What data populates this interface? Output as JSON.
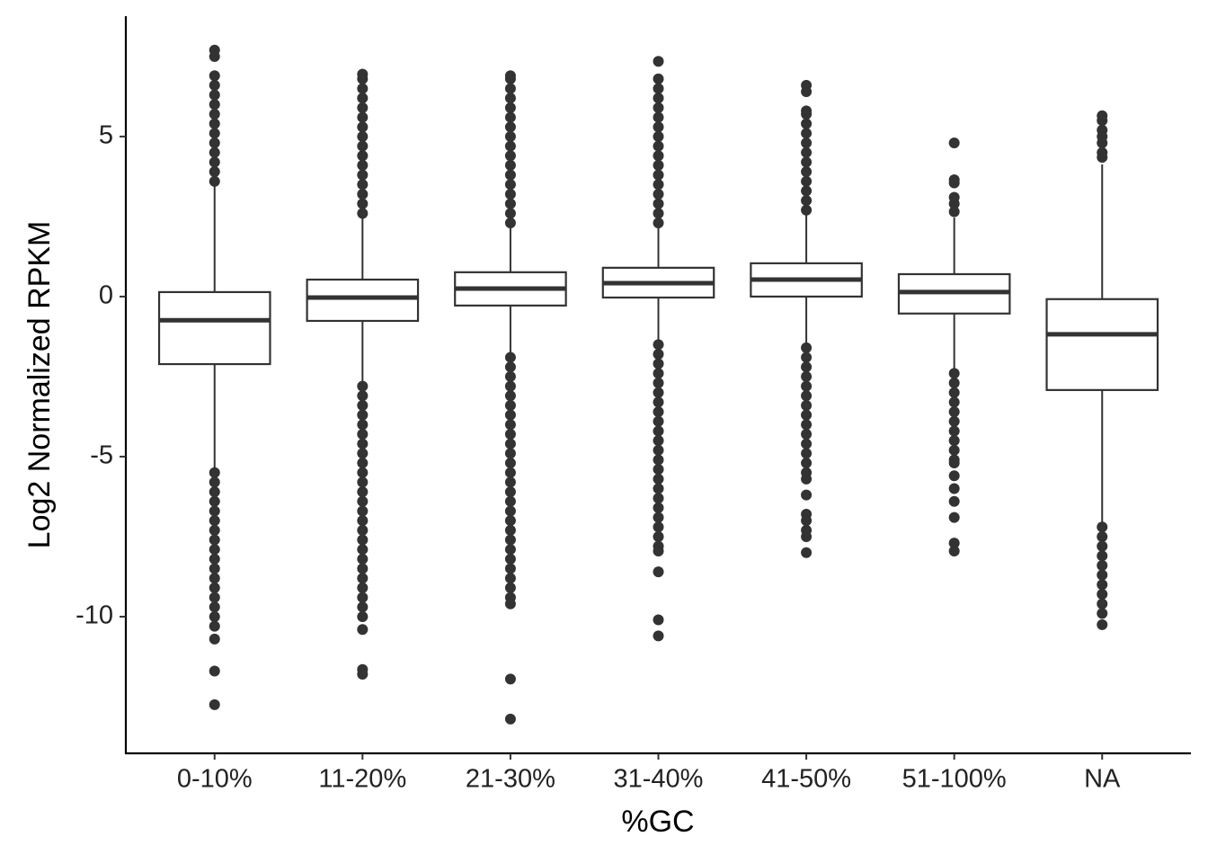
{
  "chart_data": {
    "type": "boxplot",
    "xlabel": "%GC",
    "ylabel": "Log2 Normalized RPKM",
    "categories": [
      "0-10%",
      "11-20%",
      "21-30%",
      "31-40%",
      "41-50%",
      "51-100%",
      "NA"
    ],
    "ylim": [
      -14.27,
      8.76
    ],
    "yticks": [
      -10,
      -5,
      0,
      5
    ],
    "color": "#333333",
    "fill": "#ffffff",
    "boxes": [
      {
        "q1": -2.11,
        "median": -0.74,
        "q3": 0.14,
        "whisker_low": -5.4,
        "whisker_high": 3.5,
        "outliers": [
          3.6,
          3.9,
          4.2,
          4.5,
          4.8,
          5.1,
          5.4,
          5.7,
          6.0,
          6.3,
          6.6,
          6.9,
          7.5,
          7.7,
          -5.5,
          -5.8,
          -6.1,
          -6.4,
          -6.7,
          -7.0,
          -7.3,
          -7.6,
          -7.9,
          -8.2,
          -8.5,
          -8.8,
          -9.1,
          -9.4,
          -9.7,
          -10.0,
          -10.3,
          -10.7,
          -11.7,
          -12.75
        ]
      },
      {
        "q1": -0.76,
        "median": -0.03,
        "q3": 0.53,
        "whisker_low": -2.75,
        "whisker_high": 2.5,
        "outliers": [
          2.6,
          2.9,
          3.2,
          3.5,
          3.8,
          4.1,
          4.4,
          4.7,
          5.0,
          5.3,
          5.6,
          5.9,
          6.2,
          6.5,
          6.8,
          6.95,
          -2.8,
          -3.1,
          -3.4,
          -3.7,
          -4.0,
          -4.3,
          -4.6,
          -4.9,
          -5.2,
          -5.5,
          -5.8,
          -6.1,
          -6.4,
          -6.7,
          -7.0,
          -7.3,
          -7.6,
          -7.9,
          -8.2,
          -8.5,
          -8.8,
          -9.1,
          -9.4,
          -9.7,
          -10.0,
          -10.4,
          -11.65,
          -11.8
        ]
      },
      {
        "q1": -0.28,
        "median": 0.25,
        "q3": 0.76,
        "whisker_low": -1.83,
        "whisker_high": 2.25,
        "outliers": [
          2.3,
          2.6,
          2.9,
          3.2,
          3.5,
          3.8,
          4.1,
          4.4,
          4.7,
          5.0,
          5.3,
          5.6,
          5.9,
          6.2,
          6.5,
          6.8,
          6.9,
          -1.9,
          -2.2,
          -2.5,
          -2.8,
          -3.1,
          -3.4,
          -3.7,
          -4.0,
          -4.3,
          -4.6,
          -4.9,
          -5.2,
          -5.5,
          -5.8,
          -6.1,
          -6.4,
          -6.7,
          -7.0,
          -7.3,
          -7.6,
          -7.9,
          -8.2,
          -8.5,
          -8.8,
          -9.1,
          -9.4,
          -9.6,
          -11.95,
          -13.2
        ]
      },
      {
        "q1": -0.03,
        "median": 0.42,
        "q3": 0.9,
        "whisker_low": -1.4,
        "whisker_high": 2.25,
        "outliers": [
          2.3,
          2.6,
          2.9,
          3.2,
          3.5,
          3.8,
          4.1,
          4.4,
          4.7,
          5.0,
          5.3,
          5.6,
          5.9,
          6.2,
          6.5,
          6.8,
          7.35,
          -1.5,
          -1.8,
          -2.1,
          -2.4,
          -2.7,
          -3.0,
          -3.3,
          -3.6,
          -3.9,
          -4.2,
          -4.5,
          -4.8,
          -5.1,
          -5.4,
          -5.7,
          -6.0,
          -6.3,
          -6.6,
          -6.9,
          -7.2,
          -7.5,
          -7.8,
          -7.95,
          -8.6,
          -10.1,
          -10.6
        ]
      },
      {
        "q1": 0.0,
        "median": 0.53,
        "q3": 1.04,
        "whisker_low": -1.55,
        "whisker_high": 2.6,
        "outliers": [
          2.7,
          3.0,
          3.3,
          3.6,
          3.9,
          4.2,
          4.5,
          4.8,
          5.1,
          5.4,
          5.7,
          5.8,
          6.4,
          6.6,
          -1.6,
          -1.9,
          -2.2,
          -2.5,
          -2.8,
          -3.1,
          -3.4,
          -3.7,
          -4.0,
          -4.3,
          -4.6,
          -4.9,
          -5.2,
          -5.5,
          -5.7,
          -6.2,
          -6.8,
          -7.0,
          -7.3,
          -7.5,
          -8.0
        ]
      },
      {
        "q1": -0.53,
        "median": 0.14,
        "q3": 0.7,
        "whisker_low": -2.25,
        "whisker_high": 2.47,
        "outliers": [
          2.65,
          2.9,
          3.1,
          3.55,
          3.65,
          4.8,
          -2.4,
          -2.7,
          -3.0,
          -3.3,
          -3.6,
          -3.9,
          -4.2,
          -4.5,
          -4.8,
          -5.1,
          -5.2,
          -5.6,
          -6.0,
          -6.4,
          -6.9,
          -7.7,
          -7.95
        ]
      },
      {
        "q1": -2.92,
        "median": -1.18,
        "q3": -0.08,
        "whisker_low": -7.1,
        "whisker_high": 4.13,
        "outliers": [
          4.35,
          4.5,
          4.8,
          5.0,
          5.2,
          5.5,
          5.65,
          -7.2,
          -7.5,
          -7.8,
          -8.1,
          -8.4,
          -8.7,
          -9.0,
          -9.3,
          -9.6,
          -9.9,
          -10.25
        ]
      }
    ]
  }
}
